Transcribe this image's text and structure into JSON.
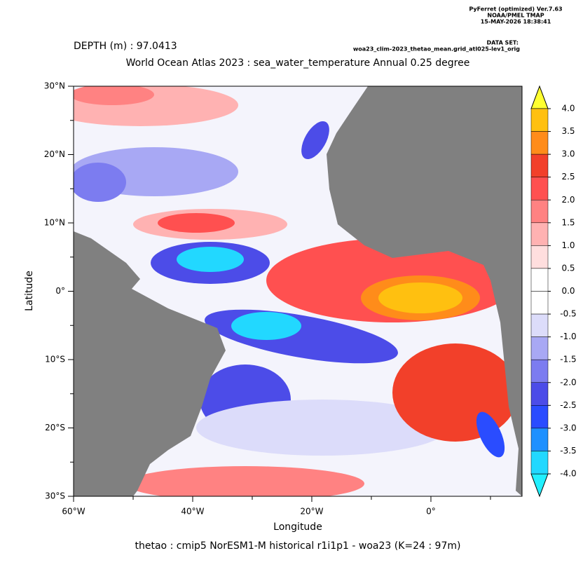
{
  "chart_data": {
    "type": "map",
    "header": [
      "PyFerret (optimized) Ver.7.63",
      "NOAA/PMEL TMAP",
      "15-MAY-2026 18:38:41"
    ],
    "dataset_label": "DATA SET:",
    "dataset": "woa23_clim-2023_thetao_mean.grid_atl025-lev1_orig",
    "depth": "DEPTH (m) : 97.0413",
    "title": "World Ocean Atlas 2023 : sea_water_temperature Annual  0.25 degree",
    "xlabel": "Longitude",
    "ylabel": "Latitude",
    "footer": "thetao : cmip5 NorESM1-M historical r1i1p1 - woa23  (K=24 : 97m)",
    "xlim": [
      -60,
      15.3
    ],
    "ylim": [
      -30,
      30
    ],
    "xticks": [
      {
        "value": -60,
        "label": "60°W"
      },
      {
        "value": -40,
        "label": "40°W"
      },
      {
        "value": -20,
        "label": "20°W"
      },
      {
        "value": 0,
        "label": "0°"
      }
    ],
    "xminorticks": [
      -50,
      -30,
      -10,
      10
    ],
    "yticks": [
      {
        "value": 30,
        "label": "30°N"
      },
      {
        "value": 20,
        "label": "20°N"
      },
      {
        "value": 10,
        "label": "10°N"
      },
      {
        "value": 0,
        "label": "0°"
      },
      {
        "value": -10,
        "label": "10°S"
      },
      {
        "value": -20,
        "label": "20°S"
      },
      {
        "value": -30,
        "label": "30°S"
      }
    ],
    "yminorticks": [
      25,
      15,
      5,
      -5,
      -15,
      -25
    ],
    "land_color": "#808080",
    "colorbar": {
      "levels": [
        {
          "value": 4,
          "label": "4.0"
        },
        {
          "value": 3.5,
          "label": "3.5"
        },
        {
          "value": 3,
          "label": "3.0"
        },
        {
          "value": 2.5,
          "label": "2.5"
        },
        {
          "value": 2,
          "label": "2.0"
        },
        {
          "value": 1.5,
          "label": "1.5"
        },
        {
          "value": 1,
          "label": "1.0"
        },
        {
          "value": 0.5,
          "label": "0.5"
        },
        {
          "value": 0,
          "label": "0.0"
        },
        {
          "value": -0.5,
          "label": "-0.5"
        },
        {
          "value": -1,
          "label": "-1.0"
        },
        {
          "value": -1.5,
          "label": "-1.5"
        },
        {
          "value": -2,
          "label": "-2.0"
        },
        {
          "value": -2.5,
          "label": "-2.5"
        },
        {
          "value": -3,
          "label": "-3.0"
        },
        {
          "value": -3.5,
          "label": "-3.5"
        },
        {
          "value": -4,
          "label": "-4.0"
        }
      ],
      "colors": [
        "#ffc010",
        "#ff8c1a",
        "#f2402a",
        "#ff5050",
        "#ff8282",
        "#ffb2b2",
        "#ffdede",
        "#ffffff",
        "#ffffff",
        "#dcdcfa",
        "#a8a8f4",
        "#7c7cf0",
        "#4c4ce8",
        "#2a4cff",
        "#1e90ff",
        "#22d8ff"
      ],
      "over_color": "#ffff30",
      "under_color": "#22f0ff"
    }
  }
}
